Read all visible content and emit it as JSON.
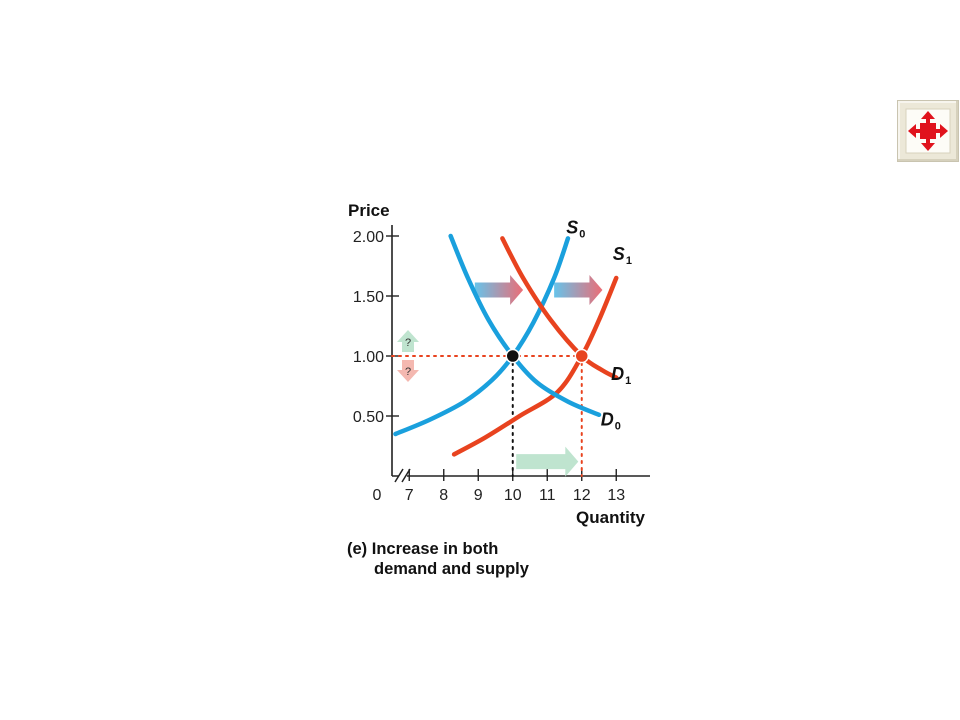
{
  "nav": {
    "icon": "expand-arrows-icon"
  },
  "colors": {
    "blue": "#1aa0dd",
    "red": "#e8431f",
    "pale_green": "#bfe4cf",
    "pale_red": "#f4b8b0",
    "grid_dot_red": "#e8431f",
    "grid_dot_black": "#111111"
  },
  "chart_data": {
    "type": "line",
    "title": "(e) Increase in both demand and supply",
    "caption_lines": [
      "(e) Increase in both",
      "demand and supply"
    ],
    "xlabel": "Quantity",
    "ylabel": "Price",
    "xlim": [
      6.4,
      13.5
    ],
    "ylim": [
      0,
      2.1
    ],
    "x_break": true,
    "x_origin_label": "0",
    "x_ticks": [
      7,
      8,
      9,
      10,
      11,
      12,
      13
    ],
    "x_tick_labels": [
      "7",
      "8",
      "9",
      "10",
      "11",
      "12",
      "13"
    ],
    "x_highlight_tick": 12,
    "y_ticks": [
      0.5,
      1.0,
      1.5,
      2.0
    ],
    "y_tick_labels": [
      "0.50",
      "1.00",
      "1.50",
      "2.00"
    ],
    "y_highlight_tick": 1.0,
    "series": [
      {
        "name": "S",
        "sub": "0",
        "color": "#1aa0dd",
        "points": [
          [
            6.6,
            0.35
          ],
          [
            7.6,
            0.47
          ],
          [
            8.6,
            0.62
          ],
          [
            9.4,
            0.8
          ],
          [
            10.0,
            1.0
          ],
          [
            10.6,
            1.28
          ],
          [
            11.2,
            1.65
          ],
          [
            11.6,
            1.98
          ]
        ]
      },
      {
        "name": "S",
        "sub": "1",
        "color": "#e8431f",
        "points": [
          [
            8.3,
            0.18
          ],
          [
            9.2,
            0.32
          ],
          [
            10.2,
            0.5
          ],
          [
            11.3,
            0.7
          ],
          [
            12.0,
            1.0
          ],
          [
            12.5,
            1.3
          ],
          [
            13.0,
            1.65
          ]
        ]
      },
      {
        "name": "D",
        "sub": "0",
        "color": "#1aa0dd",
        "points": [
          [
            8.2,
            2.0
          ],
          [
            8.7,
            1.65
          ],
          [
            9.3,
            1.3
          ],
          [
            10.0,
            1.0
          ],
          [
            10.7,
            0.78
          ],
          [
            11.6,
            0.62
          ],
          [
            12.5,
            0.51
          ]
        ]
      },
      {
        "name": "D",
        "sub": "1",
        "color": "#e8431f",
        "points": [
          [
            9.7,
            1.98
          ],
          [
            10.3,
            1.65
          ],
          [
            11.1,
            1.3
          ],
          [
            12.0,
            1.0
          ],
          [
            12.6,
            0.88
          ],
          [
            13.0,
            0.82
          ]
        ]
      }
    ],
    "curve_labels": [
      {
        "name": "S",
        "sub": "0",
        "x": 11.55,
        "y": 2.02
      },
      {
        "name": "S",
        "sub": "1",
        "x": 12.9,
        "y": 1.8
      },
      {
        "name": "D",
        "sub": "1",
        "x": 12.85,
        "y": 0.8
      },
      {
        "name": "D",
        "sub": "0",
        "x": 12.55,
        "y": 0.42
      }
    ],
    "equilibria": [
      {
        "x": 10,
        "y": 1.0,
        "color": "#111111"
      },
      {
        "x": 12,
        "y": 1.0,
        "color": "#e8431f"
      }
    ],
    "shift_arrows": [
      {
        "x0": 8.9,
        "x1": 10.3,
        "y": 1.55,
        "style": "blue-red"
      },
      {
        "x0": 11.2,
        "x1": 12.6,
        "y": 1.55,
        "style": "blue-red"
      },
      {
        "x0": 10.1,
        "x1": 11.9,
        "y": 0.12,
        "style": "green"
      }
    ],
    "price_change_labels": [
      "?",
      "?"
    ]
  }
}
